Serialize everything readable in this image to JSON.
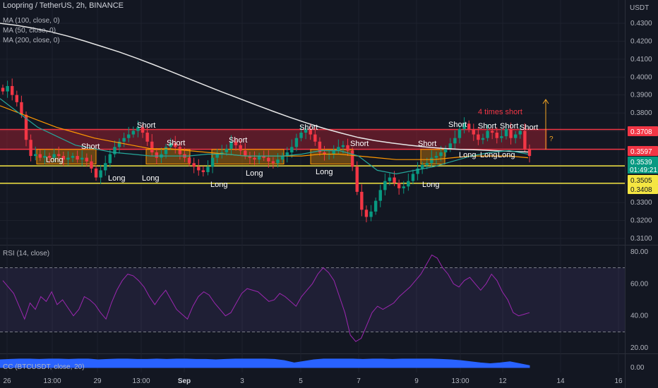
{
  "header": {
    "title": "Loopring / TetherUS, 2h, BINANCE",
    "ma100": "MA (100, close, 0)",
    "ma50": "MA (50, close, 0)",
    "ma200": "MA (200, close, 0)",
    "rsi": "RSI (14, close)",
    "cc": "CC (BTCUSDT, close, 20)"
  },
  "chart_data": {
    "type": "candlestick",
    "currency": "USDT",
    "x_ticks": [
      "26",
      "13:00",
      "29",
      "13:00",
      "Sep",
      "3",
      "5",
      "7",
      "9",
      "13:00",
      "12",
      "14",
      "16"
    ],
    "price_ticks": [
      "0.4300",
      "0.4200",
      "0.4100",
      "0.4000",
      "0.3900",
      "0.3800",
      "0.3700",
      "0.3600",
      "0.3500",
      "0.3400",
      "0.3300",
      "0.3200",
      "0.3100"
    ],
    "ylim": [
      0.31,
      0.436
    ],
    "price_levels": [
      {
        "label": "0.3708",
        "value": 0.3708,
        "color": "#f23645"
      },
      {
        "label": "0.3597",
        "value": 0.3597,
        "color": "#f23645"
      },
      {
        "label": "0.3539",
        "value": 0.3539,
        "color": "#089981"
      },
      {
        "label": "0.3505",
        "value": 0.3505,
        "color": "#f5e642"
      },
      {
        "label": "0.3408",
        "value": 0.3408,
        "color": "#f5e642"
      }
    ],
    "countdown": "01:49:21",
    "short_labels": [
      "Short",
      "Short",
      "Short",
      "Short",
      "Short",
      "Short",
      "Short",
      "Short",
      "Short",
      "Short",
      "Short"
    ],
    "long_labels": [
      "Long",
      "Long",
      "Long",
      "Long",
      "Long",
      "Long",
      "Long",
      "Long",
      "Long",
      "Long"
    ],
    "annotation": "4 times short",
    "question": "?",
    "close_series": [
      0.392,
      0.395,
      0.39,
      0.386,
      0.379,
      0.365,
      0.356,
      0.357,
      0.355,
      0.356,
      0.355,
      0.357,
      0.356,
      0.354,
      0.355,
      0.356,
      0.354,
      0.355,
      0.353,
      0.349,
      0.344,
      0.348,
      0.352,
      0.357,
      0.361,
      0.364,
      0.366,
      0.368,
      0.37,
      0.372,
      0.369,
      0.364,
      0.358,
      0.355,
      0.357,
      0.361,
      0.363,
      0.361,
      0.357,
      0.355,
      0.352,
      0.35,
      0.348,
      0.347,
      0.35,
      0.355,
      0.357,
      0.358,
      0.36,
      0.364,
      0.362,
      0.359,
      0.356,
      0.355,
      0.354,
      0.356,
      0.355,
      0.353,
      0.352,
      0.354,
      0.356,
      0.358,
      0.361,
      0.366,
      0.369,
      0.371,
      0.368,
      0.364,
      0.358,
      0.357,
      0.357,
      0.359,
      0.361,
      0.362,
      0.359,
      0.35,
      0.336,
      0.326,
      0.322,
      0.325,
      0.331,
      0.337,
      0.342,
      0.344,
      0.341,
      0.338,
      0.339,
      0.342,
      0.346,
      0.349,
      0.351,
      0.352,
      0.355,
      0.356,
      0.358,
      0.36,
      0.363,
      0.366,
      0.371,
      0.374,
      0.371,
      0.368,
      0.365,
      0.366,
      0.37,
      0.369,
      0.366,
      0.367,
      0.371,
      0.366,
      0.368,
      0.37,
      0.36,
      0.356
    ],
    "ma200_series": [
      0.43,
      0.4288,
      0.4272,
      0.4252,
      0.4228,
      0.42,
      0.417,
      0.414,
      0.4106,
      0.407,
      0.4032,
      0.3994,
      0.3956,
      0.3918,
      0.3882,
      0.3846,
      0.381,
      0.3776,
      0.3744,
      0.3714,
      0.3688,
      0.3664,
      0.3646,
      0.3632,
      0.362,
      0.361,
      0.3602,
      0.3597,
      0.3594,
      0.359,
      0.3586,
      0.3582
    ],
    "ma100_series": [
      0.384,
      0.38,
      0.376,
      0.372,
      0.369,
      0.366,
      0.364,
      0.362,
      0.36,
      0.36,
      0.359,
      0.358,
      0.357,
      0.356,
      0.356,
      0.356,
      0.356,
      0.357,
      0.357,
      0.356,
      0.355,
      0.354,
      0.354,
      0.354,
      0.355,
      0.356,
      0.356,
      0.356,
      0.355
    ],
    "ma50_series": [
      0.388,
      0.38,
      0.372,
      0.367,
      0.362,
      0.36,
      0.358,
      0.357,
      0.356,
      0.356,
      0.356,
      0.357,
      0.357,
      0.356,
      0.356,
      0.356,
      0.357,
      0.359,
      0.359,
      0.356,
      0.348,
      0.346,
      0.348,
      0.35,
      0.353,
      0.356,
      0.358,
      0.359,
      0.357
    ],
    "rsi": {
      "ticks": [
        "80.00",
        "60.00",
        "40.00",
        "20.00"
      ],
      "upper": 70,
      "lower": 30,
      "ylim": [
        17,
        83
      ],
      "series": [
        62,
        58,
        54,
        46,
        38,
        48,
        44,
        52,
        49,
        55,
        47,
        50,
        45,
        40,
        44,
        52,
        50,
        47,
        42,
        38,
        48,
        56,
        62,
        66,
        65,
        62,
        58,
        52,
        47,
        52,
        56,
        50,
        44,
        41,
        38,
        46,
        52,
        55,
        53,
        48,
        44,
        40,
        42,
        48,
        54,
        57,
        56,
        55,
        52,
        49,
        50,
        54,
        52,
        49,
        46,
        52,
        56,
        60,
        66,
        70,
        67,
        62,
        52,
        42,
        28,
        24,
        26,
        34,
        42,
        46,
        44,
        46,
        48,
        52,
        55,
        58,
        62,
        66,
        72,
        78,
        76,
        70,
        66,
        60,
        58,
        62,
        64,
        60,
        56,
        60,
        66,
        62,
        55,
        50,
        42,
        40,
        41,
        42
      ]
    },
    "cc": {
      "ticks": [
        "0.00"
      ],
      "series": [
        0.2,
        0.21,
        0.22,
        0.22,
        0.21,
        0.22,
        0.22,
        0.21,
        0.22,
        0.22,
        0.2,
        0.21,
        0.22,
        0.22,
        0.21,
        0.21,
        0.22,
        0.21,
        0.22,
        0.22,
        0.21,
        0.21,
        0.2,
        0.21,
        0.22,
        0.22,
        0.22,
        0.22,
        0.21,
        0.18,
        0.12,
        0.16,
        0.2,
        0.22,
        0.22,
        0.22,
        0.22,
        0.21,
        0.22,
        0.22,
        0.21,
        0.22,
        0.22,
        0.22,
        0.22,
        0.21,
        0.2,
        0.18,
        0.15,
        0.12,
        0.1,
        0.12,
        0.15,
        0.1,
        0.05
      ]
    }
  }
}
